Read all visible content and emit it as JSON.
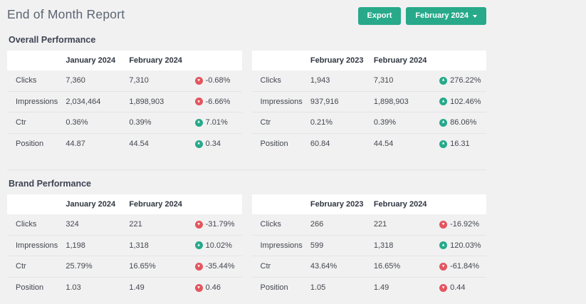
{
  "header": {
    "title": "End of Month Report",
    "export_label": "Export",
    "period_label": "February 2024"
  },
  "colors": {
    "accent_green": "#27a98a",
    "negative_red": "#e4555e",
    "page_bg": "#f1f1f2"
  },
  "sections": [
    {
      "title": "Overall Performance",
      "tables": [
        {
          "col1": "January 2024",
          "col2": "February 2024",
          "rows": [
            {
              "metric": "Clicks",
              "v1": "7,360",
              "v2": "7,310",
              "change": "-0.68%",
              "trend": "down"
            },
            {
              "metric": "Impressions",
              "v1": "2,034,464",
              "v2": "1,898,903",
              "change": "-6.66%",
              "trend": "down"
            },
            {
              "metric": "Ctr",
              "v1": "0.36%",
              "v2": "0.39%",
              "change": "7.01%",
              "trend": "up"
            },
            {
              "metric": "Position",
              "v1": "44.87",
              "v2": "44.54",
              "change": "0.34",
              "trend": "up"
            }
          ]
        },
        {
          "col1": "February 2023",
          "col2": "February 2024",
          "rows": [
            {
              "metric": "Clicks",
              "v1": "1,943",
              "v2": "7,310",
              "change": "276.22%",
              "trend": "up"
            },
            {
              "metric": "Impressions",
              "v1": "937,916",
              "v2": "1,898,903",
              "change": "102.46%",
              "trend": "up"
            },
            {
              "metric": "Ctr",
              "v1": "0.21%",
              "v2": "0.39%",
              "change": "86.06%",
              "trend": "up"
            },
            {
              "metric": "Position",
              "v1": "60.84",
              "v2": "44.54",
              "change": "16.31",
              "trend": "up"
            }
          ]
        }
      ]
    },
    {
      "title": "Brand Performance",
      "tables": [
        {
          "col1": "January 2024",
          "col2": "February 2024",
          "rows": [
            {
              "metric": "Clicks",
              "v1": "324",
              "v2": "221",
              "change": "-31.79%",
              "trend": "down"
            },
            {
              "metric": "Impressions",
              "v1": "1,198",
              "v2": "1,318",
              "change": "10.02%",
              "trend": "up"
            },
            {
              "metric": "Ctr",
              "v1": "25.79%",
              "v2": "16.65%",
              "change": "-35.44%",
              "trend": "down"
            },
            {
              "metric": "Position",
              "v1": "1.03",
              "v2": "1.49",
              "change": "0.46",
              "trend": "down"
            }
          ]
        },
        {
          "col1": "February 2023",
          "col2": "February 2024",
          "rows": [
            {
              "metric": "Clicks",
              "v1": "266",
              "v2": "221",
              "change": "-16.92%",
              "trend": "down"
            },
            {
              "metric": "Impressions",
              "v1": "599",
              "v2": "1,318",
              "change": "120.03%",
              "trend": "up"
            },
            {
              "metric": "Ctr",
              "v1": "43.64%",
              "v2": "16.65%",
              "change": "-61.84%",
              "trend": "down"
            },
            {
              "metric": "Position",
              "v1": "1.05",
              "v2": "1.49",
              "change": "0.44",
              "trend": "down"
            }
          ]
        }
      ]
    }
  ]
}
